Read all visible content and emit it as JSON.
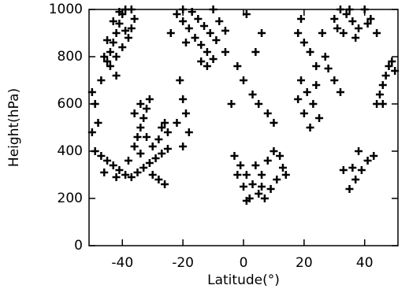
{
  "chart_data": {
    "type": "scatter",
    "x_label": "Latitude(°)",
    "y_label": "Height(hPa)",
    "xlim": [
      -51,
      51
    ],
    "ylim": [
      0,
      1000
    ],
    "xticks": [
      -40,
      -20,
      0,
      20,
      40
    ],
    "yticks": [
      0,
      200,
      400,
      600,
      800,
      1000
    ],
    "color": "#000000",
    "marker": "+",
    "x": [
      -45,
      -44,
      -43,
      -42,
      -41,
      -40,
      -39,
      -44,
      -42,
      -40,
      -38,
      -37,
      -36,
      -43,
      -41,
      -45,
      -39,
      -37,
      -42,
      -46,
      -22,
      -20,
      -18,
      -16,
      -14,
      -12,
      -10,
      -20,
      -17,
      -15,
      -13,
      -11,
      -9,
      -19,
      -14,
      -12,
      -8,
      -6,
      -24,
      -10,
      -49,
      -47,
      -45,
      -43,
      -41,
      -39,
      -37,
      -35,
      -33,
      -31,
      -29,
      -27,
      -25,
      -46,
      -42,
      -38,
      -34,
      -30,
      -28,
      -26,
      -36,
      -35,
      -34,
      -33,
      -32,
      -31,
      -36,
      -34,
      -32,
      -30,
      -28,
      -27,
      -26,
      -25,
      -50,
      -49,
      -48,
      -50,
      -47,
      -21,
      -20,
      -19,
      -22,
      -18,
      -20,
      -3,
      -1,
      1,
      3,
      5,
      7,
      9,
      11,
      13,
      12,
      0,
      2,
      4,
      6,
      8,
      10,
      -2,
      1,
      14,
      6,
      -6,
      -2,
      0,
      3,
      5,
      8,
      10,
      -4,
      6,
      1,
      4,
      18,
      20,
      22,
      24,
      19,
      21,
      23,
      25,
      18,
      20,
      22,
      24,
      26,
      19,
      30,
      32,
      34,
      36,
      38,
      40,
      42,
      33,
      37,
      35,
      41,
      31,
      44,
      45,
      46,
      47,
      48,
      49,
      46,
      44,
      50,
      35,
      37,
      39,
      41,
      43,
      38,
      36,
      33,
      28,
      30,
      32,
      27
    ],
    "values": [
      780,
      820,
      860,
      900,
      940,
      980,
      1000,
      760,
      800,
      840,
      880,
      920,
      960,
      950,
      990,
      870,
      910,
      1000,
      720,
      800,
      980,
      950,
      920,
      880,
      850,
      820,
      790,
      1000,
      990,
      960,
      930,
      900,
      870,
      860,
      780,
      760,
      950,
      910,
      900,
      1000,
      400,
      380,
      360,
      340,
      320,
      300,
      290,
      310,
      330,
      350,
      370,
      390,
      410,
      310,
      290,
      360,
      390,
      300,
      280,
      260,
      420,
      460,
      500,
      540,
      580,
      620,
      560,
      600,
      460,
      420,
      450,
      500,
      520,
      480,
      650,
      600,
      520,
      480,
      700,
      700,
      620,
      560,
      520,
      480,
      420,
      380,
      340,
      300,
      260,
      220,
      200,
      240,
      280,
      330,
      380,
      250,
      200,
      340,
      300,
      360,
      400,
      300,
      190,
      300,
      250,
      820,
      760,
      700,
      640,
      600,
      560,
      520,
      600,
      900,
      980,
      820,
      900,
      860,
      820,
      760,
      700,
      650,
      600,
      540,
      620,
      560,
      500,
      680,
      900,
      960,
      960,
      1000,
      980,
      950,
      920,
      1000,
      960,
      900,
      880,
      1000,
      940,
      920,
      600,
      640,
      680,
      720,
      760,
      780,
      600,
      900,
      740,
      240,
      280,
      320,
      360,
      380,
      400,
      330,
      320,
      750,
      700,
      650,
      800
    ]
  }
}
